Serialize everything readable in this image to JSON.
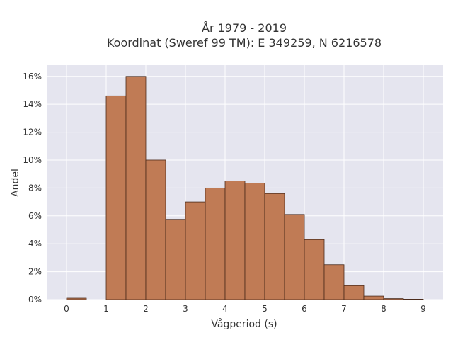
{
  "chart_data": {
    "type": "bar",
    "title_lines": [
      "År 1979 - 2019",
      "Koordinat (Sweref 99 TM): E 349259, N 6216578"
    ],
    "xlabel": "Vågperiod (s)",
    "ylabel": "Andel",
    "xlim": [
      -0.5,
      9.5
    ],
    "ylim": [
      0,
      16.8
    ],
    "x_ticks": [
      0,
      1,
      2,
      3,
      4,
      5,
      6,
      7,
      8,
      9
    ],
    "y_ticks": [
      0,
      2,
      4,
      6,
      8,
      10,
      12,
      14,
      16
    ],
    "y_tick_labels": [
      "0%",
      "2%",
      "4%",
      "6%",
      "8%",
      "10%",
      "12%",
      "14%",
      "16%"
    ],
    "bin_width": 0.5,
    "bins": [
      {
        "start": 0.0,
        "value": 0.1
      },
      {
        "start": 0.5,
        "value": 0.0
      },
      {
        "start": 1.0,
        "value": 14.6
      },
      {
        "start": 1.5,
        "value": 16.0
      },
      {
        "start": 2.0,
        "value": 10.0
      },
      {
        "start": 2.5,
        "value": 5.75
      },
      {
        "start": 3.0,
        "value": 7.0
      },
      {
        "start": 3.5,
        "value": 8.0
      },
      {
        "start": 4.0,
        "value": 8.5
      },
      {
        "start": 4.5,
        "value": 8.35
      },
      {
        "start": 5.0,
        "value": 7.6
      },
      {
        "start": 5.5,
        "value": 6.1
      },
      {
        "start": 6.0,
        "value": 4.3
      },
      {
        "start": 6.5,
        "value": 2.5
      },
      {
        "start": 7.0,
        "value": 1.0
      },
      {
        "start": 7.5,
        "value": 0.25
      },
      {
        "start": 8.0,
        "value": 0.07
      },
      {
        "start": 8.5,
        "value": 0.03
      }
    ],
    "grid": true,
    "colors": {
      "bar_fill": "#c07b55",
      "bar_edge": "#4a2a1a",
      "plot_bg": "#e5e5ef",
      "grid": "#ffffff"
    }
  }
}
